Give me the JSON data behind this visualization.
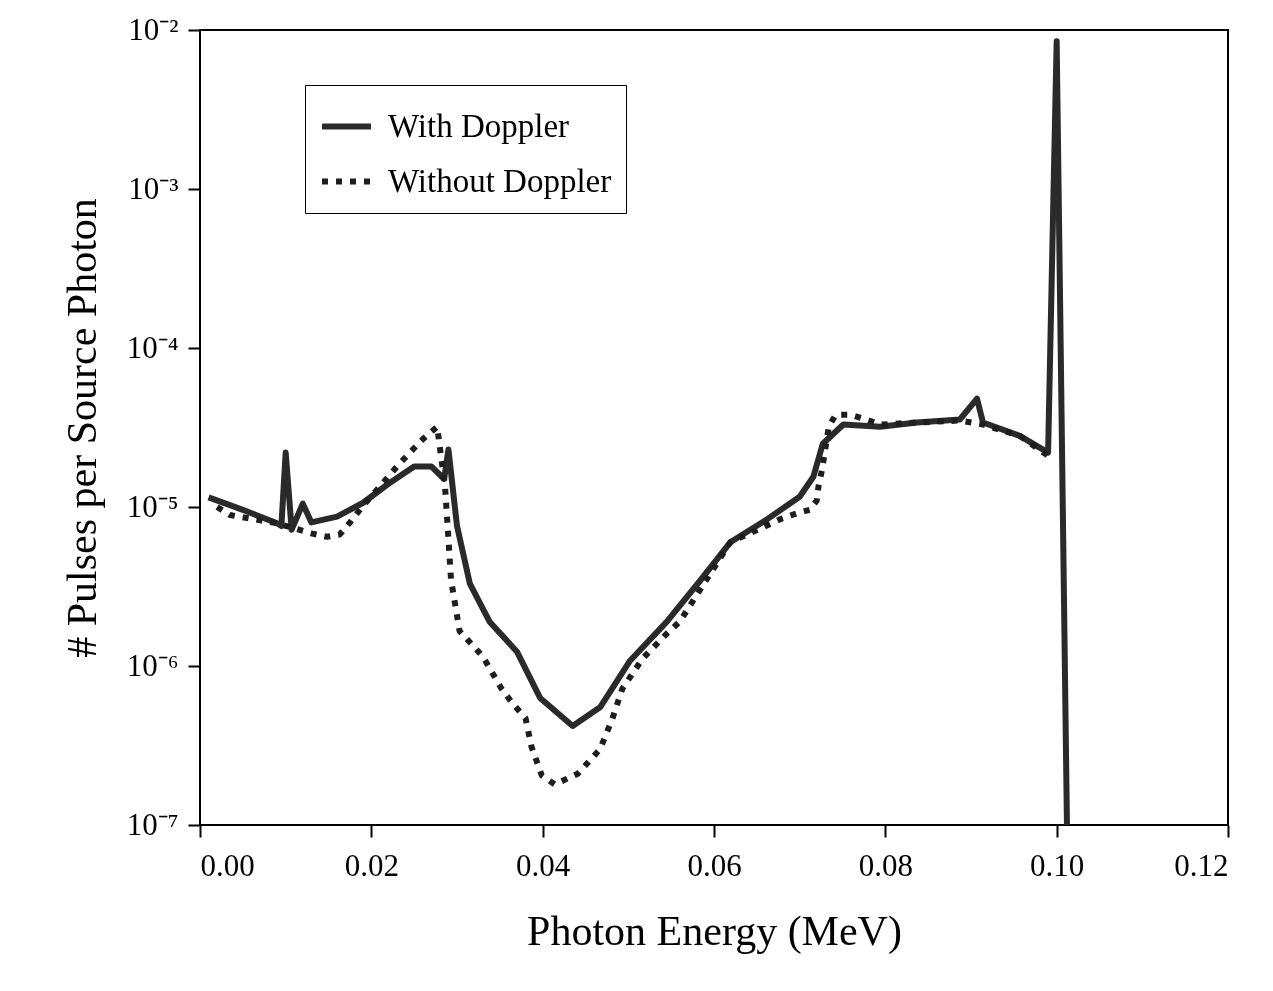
{
  "chart_data": {
    "type": "line",
    "xlabel": "Photon Energy (MeV)",
    "ylabel": "# Pulses per Source Photon",
    "log": "y",
    "grid": false,
    "legend": "top left",
    "marker": "none",
    "xlim": [
      0,
      0.12
    ],
    "xticks": [
      {
        "value": 0,
        "label": "0.00"
      },
      {
        "value": 0.02,
        "label": "0.02"
      },
      {
        "value": 0.04,
        "label": "0.04"
      },
      {
        "value": 0.06,
        "label": "0.06"
      },
      {
        "value": 0.08,
        "label": "0.08"
      },
      {
        "value": 0.1,
        "label": "0.10"
      },
      {
        "value": 0.12,
        "label": "0.12"
      }
    ],
    "ylim": [
      1e-07,
      0.01
    ],
    "yticks": [
      {
        "value": 1e-07,
        "label": "10⁻⁷"
      },
      {
        "value": 1e-06,
        "label": "10⁻⁶"
      },
      {
        "value": 1e-05,
        "label": "10⁻⁵"
      },
      {
        "value": 0.0001,
        "label": "10⁻⁴"
      },
      {
        "value": 0.001,
        "label": "10⁻³"
      },
      {
        "value": 0.01,
        "label": "10⁻²"
      }
    ],
    "series": [
      {
        "name": "With Doppler",
        "color": "#2a2a2a",
        "line_style": "solid",
        "x": [
          0.001,
          0.005,
          0.009,
          0.0095,
          0.01,
          0.0107,
          0.012,
          0.013,
          0.016,
          0.019,
          0.022,
          0.025,
          0.027,
          0.0285,
          0.029,
          0.03,
          0.0315,
          0.0338,
          0.037,
          0.0397,
          0.0435,
          0.0467,
          0.0502,
          0.0545,
          0.0583,
          0.0619,
          0.0661,
          0.07,
          0.0716,
          0.0727,
          0.0751,
          0.0794,
          0.0837,
          0.0887,
          0.0907,
          0.0914,
          0.0957,
          0.099,
          0.1,
          0.1012
        ],
        "values": [
          1.15e-05,
          9.6e-06,
          7.9e-06,
          7.6e-06,
          2.2e-05,
          7.2e-06,
          1.05e-05,
          8e-06,
          8.7e-06,
          1.06e-05,
          1.4e-05,
          1.8e-05,
          1.8e-05,
          1.5e-05,
          2.3e-05,
          7.6e-06,
          3.3e-06,
          1.9e-06,
          1.23e-06,
          6.3e-07,
          4.2e-07,
          5.5e-07,
          1.08e-06,
          1.9e-06,
          3.4e-06,
          6e-06,
          8.3e-06,
          1.16e-05,
          1.55e-05,
          2.5e-05,
          3.3e-05,
          3.2e-05,
          3.4e-05,
          3.55e-05,
          4.8e-05,
          3.4e-05,
          2.8e-05,
          2.2e-05,
          0.0085,
          1e-07
        ]
      },
      {
        "name": "Without Doppler",
        "color": "#1e1e1e",
        "line_style": "dotted",
        "x": [
          0.002,
          0.0035,
          0.009,
          0.0131,
          0.0148,
          0.0163,
          0.0176,
          0.0189,
          0.0202,
          0.023,
          0.0245,
          0.0261,
          0.0277,
          0.0279,
          0.0286,
          0.029,
          0.0293,
          0.0303,
          0.033,
          0.0352,
          0.0365,
          0.038,
          0.0387,
          0.0399,
          0.0414,
          0.0441,
          0.0467,
          0.0481,
          0.0493,
          0.0517,
          0.0545,
          0.056,
          0.0578,
          0.0619,
          0.068,
          0.0696,
          0.0712,
          0.072,
          0.0722,
          0.0726,
          0.0734,
          0.0742,
          0.0759,
          0.0774,
          0.0794,
          0.0837,
          0.0887,
          0.0914,
          0.0957,
          0.099
        ],
        "values": [
          1e-05,
          8.9e-06,
          7.9e-06,
          6.8e-06,
          6.5e-06,
          6.7e-06,
          8.1e-06,
          1e-05,
          1.2e-05,
          1.8e-05,
          2.2e-05,
          2.7e-05,
          3.2e-05,
          2.6e-05,
          1.35e-05,
          6.3e-06,
          3.5e-06,
          1.66e-06,
          1.15e-06,
          7.2e-07,
          5.8e-07,
          4.7e-07,
          3.1e-07,
          2.05e-07,
          1.8e-07,
          2.1e-07,
          3e-07,
          4.6e-07,
          7.2e-07,
          1.12e-06,
          1.6e-06,
          1.9e-06,
          2.7e-06,
          6e-06,
          8.5e-06,
          9.1e-06,
          9.6e-06,
          1.1e-05,
          1.35e-05,
          1.7e-05,
          3.2e-05,
          3.8e-05,
          3.8e-05,
          3.6e-05,
          3.3e-05,
          3.4e-05,
          3.5e-05,
          3.3e-05,
          2.8e-05,
          2.1e-05
        ]
      }
    ]
  }
}
